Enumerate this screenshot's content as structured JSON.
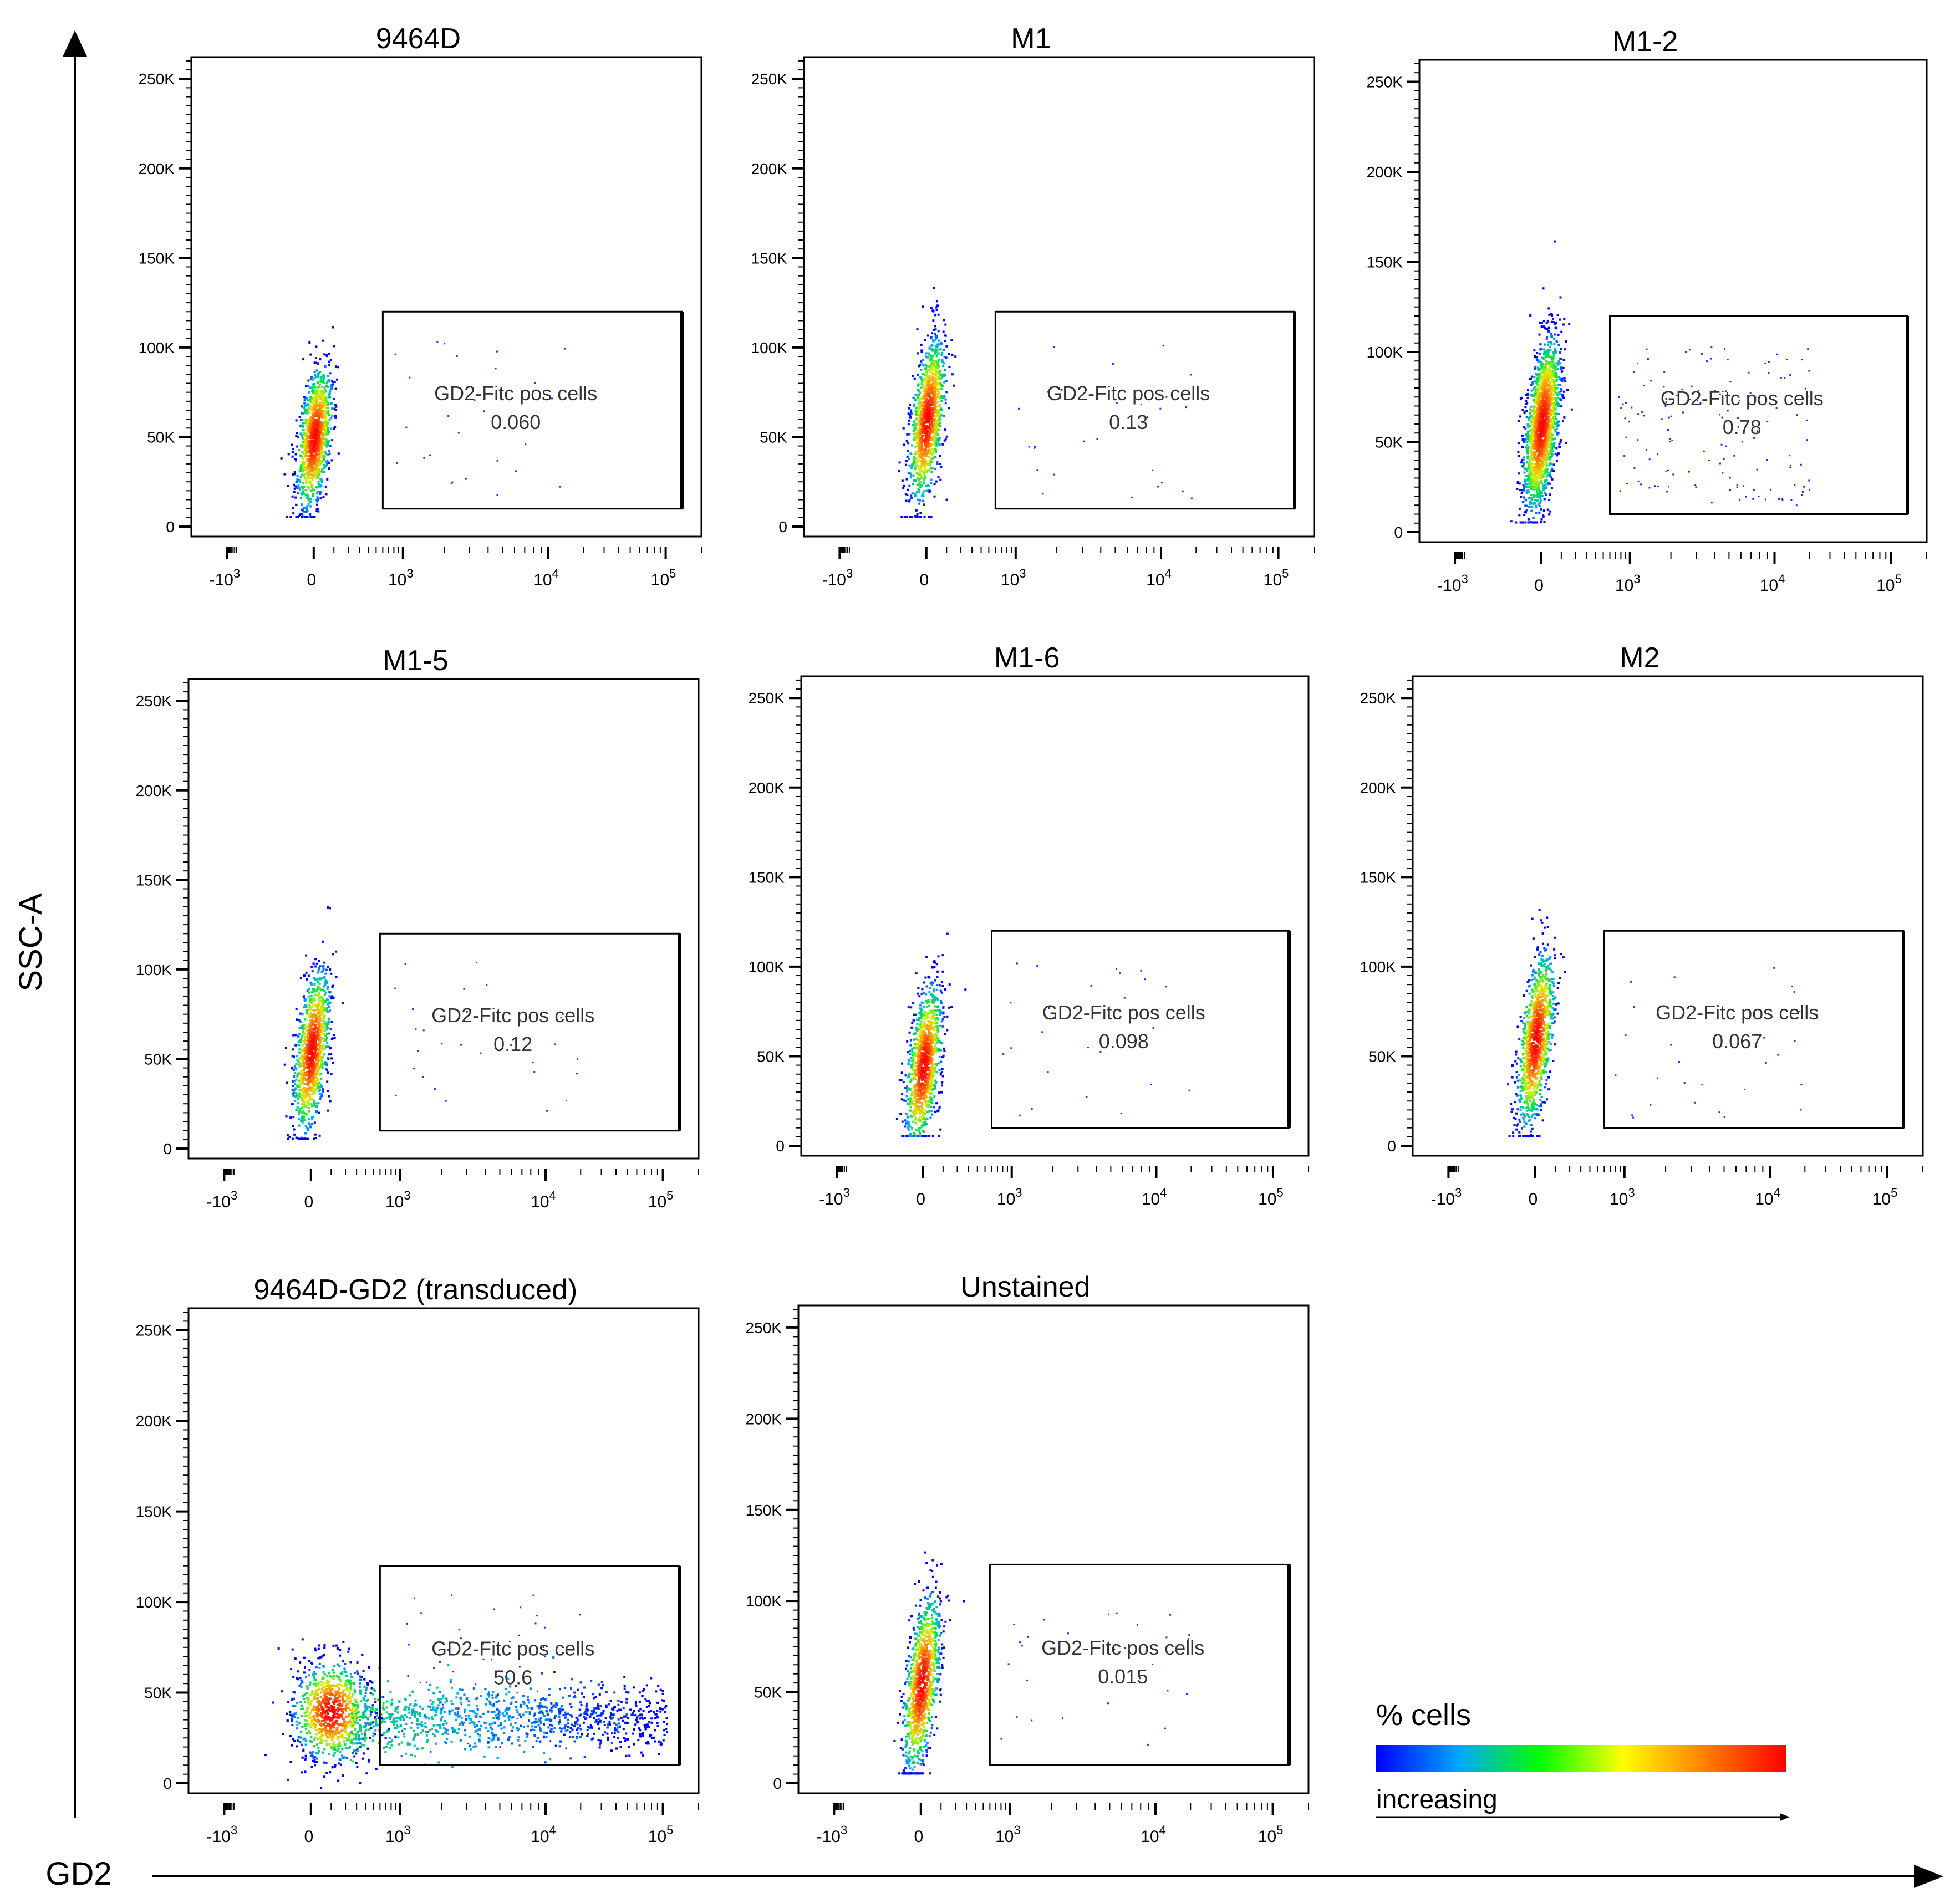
{
  "figure": {
    "y_axis_label": "SSC-A",
    "x_axis_label": "GD2"
  },
  "legend": {
    "title": "% cells",
    "caption": "increasing",
    "gradient_colors": [
      "#0000ff",
      "#00a6ff",
      "#00ff00",
      "#ffff00",
      "#ff8000",
      "#ff0000"
    ]
  },
  "chart_data": [
    {
      "type": "scatter",
      "title": "9464D",
      "gate_label": "GD2-Fitc pos cells",
      "gate_value": "0.060",
      "gate_x_range": [
        600,
        100000
      ],
      "gate_y_range": [
        10000,
        120000
      ],
      "population": {
        "x_center": 0,
        "y_center": 50000,
        "y_spread": 70000,
        "tilt": "upright",
        "event_density": "low"
      },
      "xlim": [
        -3000,
        200000
      ],
      "ylim": [
        0,
        262144
      ],
      "y_ticks": [
        "0",
        "50K",
        "100K",
        "150K",
        "200K",
        "250K"
      ],
      "x_ticks": [
        "-10",
        "0",
        "10",
        "10",
        "10"
      ],
      "x_tick_exponents": [
        "3",
        "",
        "3",
        "4",
        "5"
      ]
    },
    {
      "type": "scatter",
      "title": "M1",
      "gate_label": "GD2-Fitc pos cells",
      "gate_value": "0.13",
      "gate_x_range": [
        600,
        100000
      ],
      "gate_y_range": [
        10000,
        120000
      ],
      "population": {
        "x_center": 0,
        "y_center": 60000,
        "y_spread": 80000,
        "tilt": "upright",
        "event_density": "low"
      },
      "xlim": [
        -3000,
        200000
      ],
      "ylim": [
        0,
        262144
      ],
      "y_ticks": [
        "0",
        "50K",
        "100K",
        "150K",
        "200K",
        "250K"
      ],
      "x_ticks": [
        "-10",
        "0",
        "10",
        "10",
        "10"
      ],
      "x_tick_exponents": [
        "3",
        "",
        "3",
        "4",
        "5"
      ]
    },
    {
      "type": "scatter",
      "title": "M1-2",
      "gate_label": "GD2-Fitc pos cells",
      "gate_value": "0.78",
      "gate_x_range": [
        600,
        100000
      ],
      "gate_y_range": [
        10000,
        120000
      ],
      "population": {
        "x_center": 0,
        "y_center": 60000,
        "y_spread": 85000,
        "tilt": "upright",
        "event_density": "medium"
      },
      "xlim": [
        -3000,
        200000
      ],
      "ylim": [
        0,
        262144
      ],
      "y_ticks": [
        "0",
        "50K",
        "100K",
        "150K",
        "200K",
        "250K"
      ],
      "x_ticks": [
        "-10",
        "0",
        "10",
        "10",
        "10"
      ],
      "x_tick_exponents": [
        "3",
        "",
        "3",
        "4",
        "5"
      ]
    },
    {
      "type": "scatter",
      "title": "M1-5",
      "gate_label": "GD2-Fitc pos cells",
      "gate_value": "0.12",
      "gate_x_range": [
        600,
        100000
      ],
      "gate_y_range": [
        10000,
        120000
      ],
      "population": {
        "x_center": 0,
        "y_center": 55000,
        "y_spread": 80000,
        "tilt": "upright",
        "event_density": "low"
      },
      "xlim": [
        -3000,
        200000
      ],
      "ylim": [
        0,
        262144
      ],
      "y_ticks": [
        "0",
        "50K",
        "100K",
        "150K",
        "200K",
        "250K"
      ],
      "x_ticks": [
        "-10",
        "0",
        "10",
        "10",
        "10"
      ],
      "x_tick_exponents": [
        "3",
        "",
        "3",
        "4",
        "5"
      ]
    },
    {
      "type": "scatter",
      "title": "M1-6",
      "gate_label": "GD2-Fitc pos cells",
      "gate_value": "0.098",
      "gate_x_range": [
        600,
        100000
      ],
      "gate_y_range": [
        10000,
        120000
      ],
      "population": {
        "x_center": 0,
        "y_center": 45000,
        "y_spread": 80000,
        "tilt": "upright",
        "event_density": "low"
      },
      "xlim": [
        -3000,
        200000
      ],
      "ylim": [
        0,
        262144
      ],
      "y_ticks": [
        "0",
        "50K",
        "100K",
        "150K",
        "200K",
        "250K"
      ],
      "x_ticks": [
        "-10",
        "0",
        "10",
        "10",
        "10"
      ],
      "x_tick_exponents": [
        "3",
        "",
        "3",
        "4",
        "5"
      ]
    },
    {
      "type": "scatter",
      "title": "M2",
      "gate_label": "GD2-Fitc pos cells",
      "gate_value": "0.067",
      "gate_x_range": [
        600,
        100000
      ],
      "gate_y_range": [
        10000,
        120000
      ],
      "population": {
        "x_center": 0,
        "y_center": 60000,
        "y_spread": 85000,
        "tilt": "upright",
        "event_density": "low"
      },
      "xlim": [
        -3000,
        200000
      ],
      "ylim": [
        0,
        262144
      ],
      "y_ticks": [
        "0",
        "50K",
        "100K",
        "150K",
        "200K",
        "250K"
      ],
      "x_ticks": [
        "-10",
        "0",
        "10",
        "10",
        "10"
      ],
      "x_tick_exponents": [
        "3",
        "",
        "3",
        "4",
        "5"
      ]
    },
    {
      "type": "scatter",
      "title": "9464D-GD2 (transduced)",
      "gate_label": "GD2-Fitc pos cells",
      "gate_value": "50.6",
      "gate_x_range": [
        600,
        100000
      ],
      "gate_y_range": [
        10000,
        120000
      ],
      "population": {
        "x_center": 0,
        "y_center": 40000,
        "y_spread": 40000,
        "tilt": "horizontal",
        "event_density": "high"
      },
      "xlim": [
        -3000,
        200000
      ],
      "ylim": [
        0,
        262144
      ],
      "y_ticks": [
        "0",
        "50K",
        "100K",
        "150K",
        "200K",
        "250K"
      ],
      "x_ticks": [
        "-10",
        "0",
        "10",
        "10",
        "10"
      ],
      "x_tick_exponents": [
        "3",
        "",
        "3",
        "4",
        "5"
      ]
    },
    {
      "type": "scatter",
      "title": "Unstained",
      "gate_label": "GD2-Fitc pos cells",
      "gate_value": "0.015",
      "gate_x_range": [
        600,
        100000
      ],
      "gate_y_range": [
        10000,
        120000
      ],
      "population": {
        "x_center": 0,
        "y_center": 55000,
        "y_spread": 85000,
        "tilt": "upright",
        "event_density": "low"
      },
      "xlim": [
        -3000,
        200000
      ],
      "ylim": [
        0,
        262144
      ],
      "y_ticks": [
        "0",
        "50K",
        "100K",
        "150K",
        "200K",
        "250K"
      ],
      "x_ticks": [
        "-10",
        "0",
        "10",
        "10",
        "10"
      ],
      "x_tick_exponents": [
        "3",
        "",
        "3",
        "4",
        "5"
      ]
    }
  ]
}
